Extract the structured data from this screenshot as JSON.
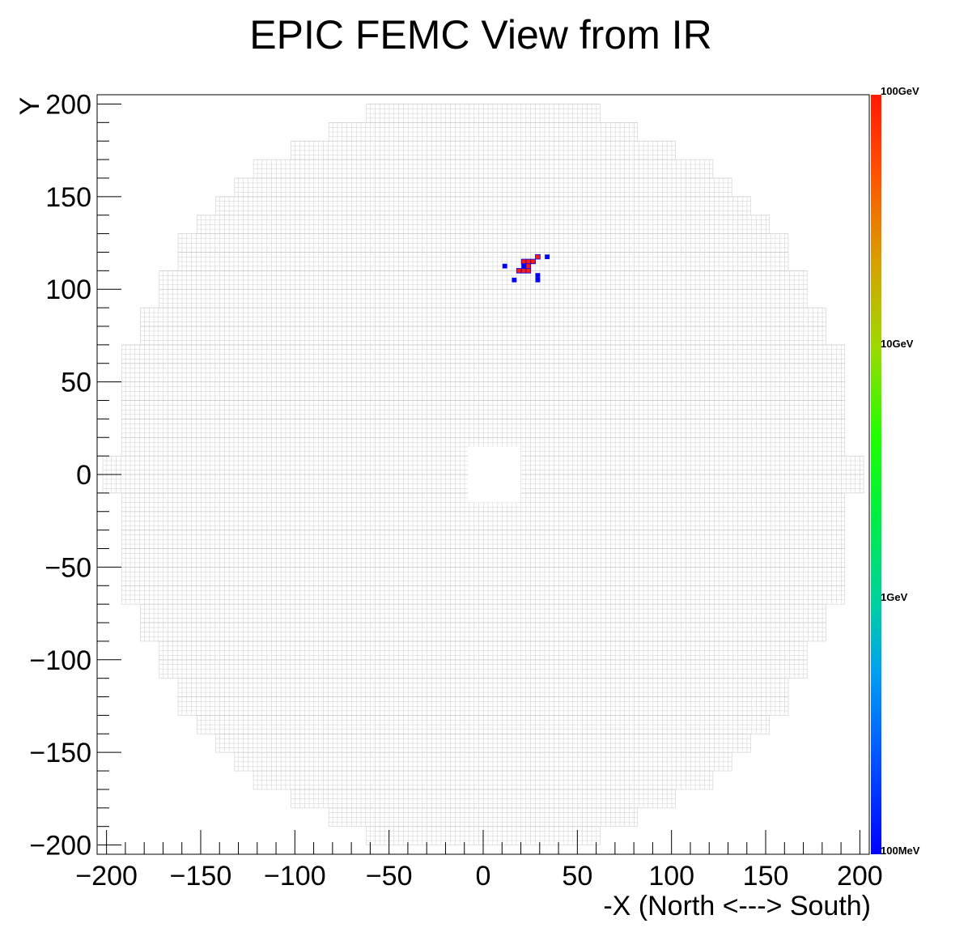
{
  "chart_data": {
    "type": "heatmap",
    "title": "EPIC FEMC View from IR",
    "xlabel": "-X (North <---> South)",
    "ylabel": "Y",
    "xlim": [
      -205,
      205
    ],
    "ylim": [
      -205,
      205
    ],
    "x_ticks": [
      -200,
      -150,
      -100,
      -50,
      0,
      50,
      100,
      150,
      200
    ],
    "y_ticks": [
      -200,
      -150,
      -100,
      -50,
      0,
      50,
      100,
      150,
      200
    ],
    "x_tick_labels": [
      "−200",
      "−150",
      "−100",
      "−50",
      "0",
      "50",
      "100",
      "150",
      "200"
    ],
    "y_tick_labels": [
      "−200",
      "−150",
      "−100",
      "−50",
      "0",
      "50",
      "100",
      "150",
      "200"
    ],
    "z_scale": "log",
    "colorbar": {
      "labels": [
        "100GeV",
        "10GeV",
        "1GeV",
        "100MeV"
      ],
      "range_gev": [
        0.1,
        100
      ]
    },
    "detector": {
      "cell_size": 2.5,
      "outer_radius": 200,
      "beam_hole": {
        "x": [
          -8,
          20
        ],
        "y": [
          -15,
          15
        ]
      }
    },
    "hits": [
      {
        "x": 11.5,
        "y": 112.5,
        "e_gev": 0.11
      },
      {
        "x": 16.5,
        "y": 105,
        "e_gev": 0.11
      },
      {
        "x": 19,
        "y": 110,
        "e_gev": 100
      },
      {
        "x": 21.5,
        "y": 110,
        "e_gev": 100
      },
      {
        "x": 21.5,
        "y": 115,
        "e_gev": 100
      },
      {
        "x": 21.5,
        "y": 112.5,
        "e_gev": 0.11
      },
      {
        "x": 24,
        "y": 115,
        "e_gev": 100
      },
      {
        "x": 24,
        "y": 110,
        "e_gev": 100
      },
      {
        "x": 24,
        "y": 112.5,
        "e_gev": 100
      },
      {
        "x": 26.5,
        "y": 115,
        "e_gev": 100
      },
      {
        "x": 29,
        "y": 117.5,
        "e_gev": 100
      },
      {
        "x": 29,
        "y": 107.5,
        "e_gev": 0.11
      },
      {
        "x": 29,
        "y": 105,
        "e_gev": 0.11
      },
      {
        "x": 34,
        "y": 117.5,
        "e_gev": 0.11
      }
    ]
  }
}
